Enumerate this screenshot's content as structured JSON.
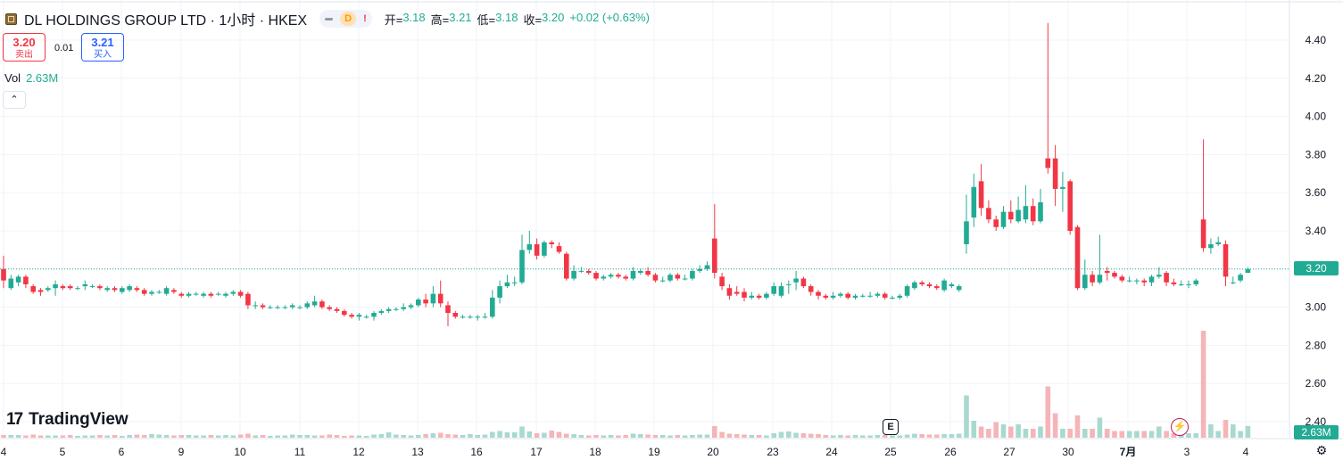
{
  "header": {
    "title": "DL HOLDINGS GROUP LTD · 1小时 · HKEX",
    "badge_d": "D",
    "badge_ex": "!",
    "ohlc": {
      "open_label": "开=",
      "open": "3.18",
      "high_label": "高=",
      "high": "3.21",
      "low_label": "低=",
      "low": "3.18",
      "close_label": "收=",
      "close": "3.20",
      "change": "+0.02 (+0.63%)"
    }
  },
  "trade": {
    "sell_price": "3.20",
    "sell_label": "卖出",
    "spread": "0.01",
    "buy_price": "3.21",
    "buy_label": "买入"
  },
  "volume": {
    "label": "Vol",
    "value": "2.63M"
  },
  "collapse_icon": "chevron-up-icon",
  "logo": {
    "mark": "17",
    "text": "TradingView"
  },
  "earnings_badge": "E",
  "last_price_tag": "3.20",
  "volume_tag": "2.63M",
  "colors": {
    "up": "#22ab94",
    "down": "#f23645",
    "up_vol": "#a8d9cf",
    "down_vol": "#f5b5b8",
    "grid": "#f0f3fa",
    "text": "#131722"
  },
  "chart_data": {
    "type": "candlestick",
    "y_axis_labels": [
      "4.40",
      "4.20",
      "4.00",
      "3.80",
      "3.60",
      "3.40",
      "3.20",
      "3.00",
      "2.80",
      "2.60",
      "2.40"
    ],
    "ylim": [
      2.32,
      4.5
    ],
    "x_tick_labels": [
      "4",
      "5",
      "6",
      "9",
      "10",
      "11",
      "12",
      "13",
      "16",
      "17",
      "18",
      "19",
      "20",
      "23",
      "24",
      "25",
      "26",
      "27",
      "30",
      "7月",
      "3",
      "4"
    ],
    "last_close": 3.2,
    "candles": [
      [
        3.2,
        3.14,
        3.27,
        3.1
      ],
      [
        3.1,
        3.15,
        3.17,
        3.09
      ],
      [
        3.13,
        3.16,
        3.17,
        3.11
      ],
      [
        3.16,
        3.12,
        3.17,
        3.1
      ],
      [
        3.11,
        3.08,
        3.12,
        3.07
      ],
      [
        3.09,
        3.08,
        3.1,
        3.06
      ],
      [
        3.09,
        3.1,
        3.11,
        3.08
      ],
      [
        3.1,
        3.12,
        3.14,
        3.06
      ],
      [
        3.11,
        3.1,
        3.12,
        3.09
      ],
      [
        3.11,
        3.1,
        3.12,
        3.09
      ],
      [
        3.1,
        3.1,
        3.11,
        3.09
      ],
      [
        3.11,
        3.12,
        3.14,
        3.09
      ],
      [
        3.11,
        3.11,
        3.12,
        3.1
      ],
      [
        3.11,
        3.1,
        3.12,
        3.09
      ],
      [
        3.09,
        3.1,
        3.11,
        3.08
      ],
      [
        3.1,
        3.09,
        3.11,
        3.08
      ],
      [
        3.08,
        3.1,
        3.11,
        3.07
      ],
      [
        3.09,
        3.11,
        3.12,
        3.08
      ],
      [
        3.1,
        3.09,
        3.11,
        3.08
      ],
      [
        3.09,
        3.07,
        3.1,
        3.06
      ],
      [
        3.07,
        3.08,
        3.09,
        3.06
      ],
      [
        3.08,
        3.08,
        3.09,
        3.07
      ],
      [
        3.07,
        3.1,
        3.11,
        3.06
      ],
      [
        3.09,
        3.08,
        3.1,
        3.07
      ],
      [
        3.07,
        3.06,
        3.08,
        3.05
      ],
      [
        3.06,
        3.07,
        3.08,
        3.05
      ],
      [
        3.07,
        3.07,
        3.08,
        3.06
      ],
      [
        3.06,
        3.07,
        3.08,
        3.05
      ],
      [
        3.07,
        3.06,
        3.08,
        3.05
      ],
      [
        3.07,
        3.07,
        3.08,
        3.06
      ],
      [
        3.06,
        3.07,
        3.08,
        3.05
      ],
      [
        3.07,
        3.08,
        3.09,
        3.06
      ],
      [
        3.08,
        3.06,
        3.09,
        3.05
      ],
      [
        3.07,
        3.01,
        3.08,
        2.99
      ],
      [
        3.01,
        3.01,
        3.03,
        2.99
      ],
      [
        3.01,
        3.0,
        3.02,
        2.99
      ],
      [
        3.0,
        3.0,
        3.01,
        2.99
      ],
      [
        3.0,
        3.0,
        3.01,
        2.99
      ],
      [
        3.0,
        3.0,
        3.01,
        2.99
      ],
      [
        3.0,
        3.01,
        3.02,
        2.99
      ],
      [
        3.0,
        3.0,
        3.01,
        2.99
      ],
      [
        3.0,
        3.02,
        3.03,
        2.99
      ],
      [
        3.01,
        3.03,
        3.06,
        3.0
      ],
      [
        3.03,
        3.0,
        3.04,
        2.99
      ],
      [
        3.0,
        2.99,
        3.01,
        2.98
      ],
      [
        2.99,
        2.98,
        3.0,
        2.97
      ],
      [
        2.98,
        2.96,
        2.99,
        2.95
      ],
      [
        2.96,
        2.95,
        2.97,
        2.94
      ],
      [
        2.95,
        2.96,
        2.97,
        2.93
      ],
      [
        2.95,
        2.95,
        2.96,
        2.94
      ],
      [
        2.95,
        2.97,
        2.98,
        2.93
      ],
      [
        2.97,
        2.98,
        2.99,
        2.96
      ],
      [
        2.98,
        2.99,
        3.0,
        2.97
      ],
      [
        2.99,
        2.99,
        3.0,
        2.98
      ],
      [
        2.99,
        3.0,
        3.02,
        2.98
      ],
      [
        3.0,
        3.01,
        3.02,
        2.99
      ],
      [
        3.01,
        3.04,
        3.05,
        3.0
      ],
      [
        3.04,
        3.02,
        3.07,
        3.0
      ],
      [
        3.02,
        3.07,
        3.11,
        3.0
      ],
      [
        3.07,
        3.02,
        3.14,
        3.0
      ],
      [
        3.01,
        2.97,
        3.03,
        2.9
      ],
      [
        2.97,
        2.95,
        2.98,
        2.94
      ],
      [
        2.95,
        2.95,
        2.96,
        2.94
      ],
      [
        2.95,
        2.95,
        2.96,
        2.94
      ],
      [
        2.95,
        2.95,
        2.96,
        2.93
      ],
      [
        2.95,
        2.95,
        2.97,
        2.94
      ],
      [
        2.95,
        3.05,
        3.09,
        2.94
      ],
      [
        3.05,
        3.11,
        3.14,
        3.02
      ],
      [
        3.11,
        3.13,
        3.17,
        3.1
      ],
      [
        3.13,
        3.13,
        3.16,
        3.11
      ],
      [
        3.13,
        3.3,
        3.38,
        3.12
      ],
      [
        3.3,
        3.33,
        3.4,
        3.28
      ],
      [
        3.33,
        3.27,
        3.36,
        3.25
      ],
      [
        3.27,
        3.34,
        3.35,
        3.26
      ],
      [
        3.34,
        3.33,
        3.35,
        3.31
      ],
      [
        3.32,
        3.29,
        3.34,
        3.28
      ],
      [
        3.28,
        3.15,
        3.29,
        3.14
      ],
      [
        3.15,
        3.19,
        3.22,
        3.14
      ],
      [
        3.19,
        3.19,
        3.21,
        3.18
      ],
      [
        3.19,
        3.18,
        3.2,
        3.17
      ],
      [
        3.18,
        3.15,
        3.19,
        3.14
      ],
      [
        3.15,
        3.16,
        3.17,
        3.14
      ],
      [
        3.16,
        3.17,
        3.18,
        3.15
      ],
      [
        3.17,
        3.16,
        3.18,
        3.15
      ],
      [
        3.16,
        3.15,
        3.17,
        3.14
      ],
      [
        3.15,
        3.19,
        3.21,
        3.14
      ],
      [
        3.18,
        3.19,
        3.2,
        3.17
      ],
      [
        3.19,
        3.17,
        3.21,
        3.16
      ],
      [
        3.17,
        3.14,
        3.18,
        3.13
      ],
      [
        3.14,
        3.14,
        3.16,
        3.13
      ],
      [
        3.14,
        3.17,
        3.18,
        3.13
      ],
      [
        3.17,
        3.15,
        3.18,
        3.14
      ],
      [
        3.15,
        3.15,
        3.17,
        3.14
      ],
      [
        3.15,
        3.19,
        3.2,
        3.14
      ],
      [
        3.19,
        3.2,
        3.22,
        3.18
      ],
      [
        3.2,
        3.22,
        3.24,
        3.19
      ],
      [
        3.36,
        3.18,
        3.54,
        3.15
      ],
      [
        3.16,
        3.11,
        3.18,
        3.09
      ],
      [
        3.1,
        3.06,
        3.12,
        3.04
      ],
      [
        3.08,
        3.07,
        3.11,
        3.06
      ],
      [
        3.08,
        3.05,
        3.1,
        3.03
      ],
      [
        3.05,
        3.06,
        3.08,
        3.04
      ],
      [
        3.06,
        3.05,
        3.07,
        3.04
      ],
      [
        3.05,
        3.07,
        3.08,
        3.04
      ],
      [
        3.07,
        3.11,
        3.13,
        3.06
      ],
      [
        3.06,
        3.11,
        3.13,
        3.05
      ],
      [
        3.12,
        3.12,
        3.14,
        3.07
      ],
      [
        3.13,
        3.15,
        3.19,
        3.09
      ],
      [
        3.15,
        3.11,
        3.16,
        3.1
      ],
      [
        3.11,
        3.08,
        3.12,
        3.06
      ],
      [
        3.08,
        3.06,
        3.09,
        3.04
      ],
      [
        3.06,
        3.05,
        3.07,
        3.04
      ],
      [
        3.05,
        3.06,
        3.08,
        3.04
      ],
      [
        3.06,
        3.07,
        3.08,
        3.05
      ],
      [
        3.07,
        3.05,
        3.08,
        3.04
      ],
      [
        3.05,
        3.06,
        3.07,
        3.04
      ],
      [
        3.06,
        3.06,
        3.07,
        3.05
      ],
      [
        3.06,
        3.06,
        3.08,
        3.05
      ],
      [
        3.06,
        3.07,
        3.08,
        3.05
      ],
      [
        3.07,
        3.05,
        3.08,
        3.04
      ],
      [
        3.05,
        3.05,
        3.06,
        3.04
      ],
      [
        3.05,
        3.06,
        3.07,
        3.04
      ],
      [
        3.06,
        3.11,
        3.12,
        3.05
      ],
      [
        3.1,
        3.13,
        3.14,
        3.09
      ],
      [
        3.13,
        3.12,
        3.14,
        3.11
      ],
      [
        3.12,
        3.11,
        3.13,
        3.1
      ],
      [
        3.11,
        3.1,
        3.12,
        3.09
      ],
      [
        3.09,
        3.14,
        3.15,
        3.08
      ],
      [
        3.11,
        3.12,
        3.13,
        3.1
      ],
      [
        3.09,
        3.11,
        3.12,
        3.08
      ],
      [
        3.33,
        3.45,
        3.59,
        3.28
      ],
      [
        3.47,
        3.63,
        3.7,
        3.42
      ],
      [
        3.66,
        3.52,
        3.75,
        3.48
      ],
      [
        3.52,
        3.46,
        3.56,
        3.44
      ],
      [
        3.46,
        3.42,
        3.48,
        3.4
      ],
      [
        3.42,
        3.5,
        3.53,
        3.41
      ],
      [
        3.5,
        3.46,
        3.56,
        3.44
      ],
      [
        3.45,
        3.51,
        3.58,
        3.44
      ],
      [
        3.46,
        3.53,
        3.64,
        3.44
      ],
      [
        3.53,
        3.45,
        3.57,
        3.43
      ],
      [
        3.45,
        3.55,
        3.62,
        3.44
      ],
      [
        3.78,
        3.73,
        4.49,
        3.7
      ],
      [
        3.78,
        3.62,
        3.85,
        3.53
      ],
      [
        3.62,
        3.63,
        3.71,
        3.5
      ],
      [
        3.66,
        3.4,
        3.67,
        3.38
      ],
      [
        3.42,
        3.1,
        3.43,
        3.09
      ],
      [
        3.1,
        3.17,
        3.25,
        3.09
      ],
      [
        3.17,
        3.13,
        3.19,
        3.11
      ],
      [
        3.13,
        3.17,
        3.38,
        3.12
      ],
      [
        3.19,
        3.18,
        3.21,
        3.14
      ],
      [
        3.18,
        3.16,
        3.19,
        3.15
      ],
      [
        3.16,
        3.14,
        3.17,
        3.13
      ],
      [
        3.14,
        3.14,
        3.16,
        3.13
      ],
      [
        3.14,
        3.14,
        3.15,
        3.12
      ],
      [
        3.14,
        3.13,
        3.15,
        3.11
      ],
      [
        3.13,
        3.16,
        3.17,
        3.11
      ],
      [
        3.16,
        3.17,
        3.21,
        3.15
      ],
      [
        3.18,
        3.13,
        3.19,
        3.11
      ],
      [
        3.13,
        3.12,
        3.15,
        3.11
      ],
      [
        3.12,
        3.12,
        3.14,
        3.11
      ],
      [
        3.12,
        3.12,
        3.14,
        3.1
      ],
      [
        3.12,
        3.14,
        3.15,
        3.11
      ],
      [
        3.46,
        3.31,
        3.88,
        3.29
      ],
      [
        3.31,
        3.33,
        3.36,
        3.28
      ],
      [
        3.33,
        3.34,
        3.37,
        3.32
      ],
      [
        3.33,
        3.16,
        3.35,
        3.11
      ],
      [
        3.13,
        3.13,
        3.16,
        3.12
      ],
      [
        3.14,
        3.17,
        3.18,
        3.13
      ],
      [
        3.18,
        3.2,
        3.21,
        3.18
      ]
    ],
    "volume": [
      0.6,
      0.6,
      0.6,
      0.5,
      0.7,
      0.5,
      0.5,
      0.5,
      0.5,
      0.6,
      0.4,
      0.5,
      0.5,
      0.6,
      0.5,
      0.6,
      0.4,
      0.6,
      0.7,
      0.6,
      0.8,
      0.7,
      0.6,
      0.5,
      0.6,
      0.6,
      0.5,
      0.5,
      0.6,
      0.5,
      0.6,
      0.5,
      0.7,
      0.9,
      0.5,
      0.6,
      0.4,
      0.5,
      0.5,
      0.7,
      0.6,
      0.6,
      0.5,
      0.5,
      0.7,
      0.6,
      0.4,
      0.5,
      0.5,
      0.4,
      0.7,
      0.8,
      1.2,
      0.7,
      0.6,
      0.5,
      0.6,
      0.8,
      1.0,
      1.1,
      0.8,
      0.7,
      0.6,
      0.8,
      0.6,
      0.7,
      1.3,
      1.5,
      1.2,
      1.2,
      2.5,
      1.4,
      1.0,
      1.1,
      1.6,
      1.3,
      0.9,
      0.8,
      0.6,
      0.5,
      0.6,
      0.5,
      0.6,
      0.5,
      0.6,
      0.9,
      0.8,
      0.7,
      0.6,
      0.6,
      0.5,
      0.6,
      0.5,
      0.6,
      0.7,
      0.7,
      2.6,
      1.3,
      0.9,
      0.8,
      0.7,
      0.6,
      0.6,
      0.5,
      1.0,
      1.3,
      1.4,
      1.1,
      1.0,
      0.9,
      0.8,
      0.6,
      0.5,
      0.6,
      0.5,
      0.6,
      0.5,
      0.5,
      0.6,
      0.6,
      0.5,
      0.5,
      0.7,
      0.9,
      0.8,
      0.7,
      0.7,
      0.8,
      0.8,
      0.9,
      9.5,
      3.8,
      2.5,
      2.0,
      3.5,
      3.0,
      2.5,
      3.0,
      2.0,
      2.0,
      2.5,
      11.5,
      5.5,
      2.0,
      2.0,
      5.0,
      2.0,
      2.0,
      4.5,
      2.0,
      1.5,
      1.5,
      1.5,
      1.5,
      1.5,
      1.5,
      2.5,
      1.5,
      1.0,
      1.0,
      1.0,
      1.0,
      24.0,
      3.0,
      1.5,
      4.0,
      3.0,
      1.5,
      2.63
    ]
  }
}
